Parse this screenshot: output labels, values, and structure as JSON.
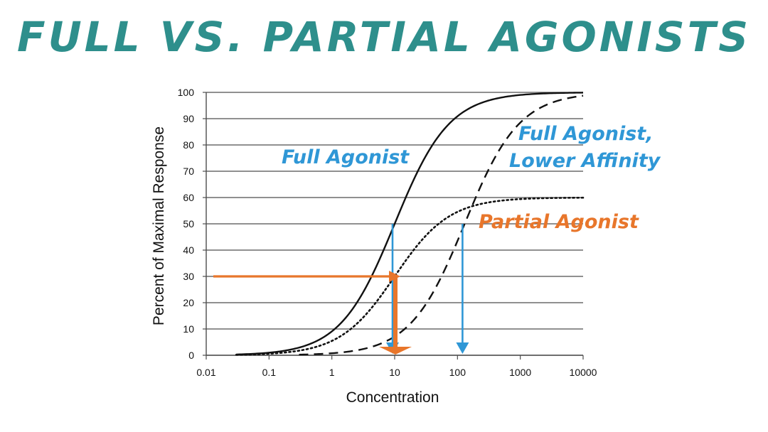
{
  "title": "FULL VS. PARTIAL AGONISTS",
  "colors": {
    "title": "#2e8f8c",
    "blue": "#2f97d6",
    "orange": "#e8762b",
    "curve": "#111111",
    "grid": "#4d4d4d"
  },
  "chart_data": {
    "type": "line",
    "xscale": "log",
    "xlim": [
      0.01,
      10000
    ],
    "ylim": [
      0,
      100
    ],
    "xticks": [
      "0.01",
      "0.1",
      "1",
      "10",
      "100",
      "1000",
      "10000"
    ],
    "yticks": [
      "0",
      "10",
      "20",
      "30",
      "40",
      "50",
      "60",
      "70",
      "80",
      "90",
      "100"
    ],
    "xlabel": "Concentration",
    "ylabel": "Percent of Maximal Response",
    "grid": "horizontal",
    "series": [
      {
        "name": "Full Agonist",
        "style": "solid",
        "emax": 100,
        "ec50": 10,
        "x_start": 0.03
      },
      {
        "name": "Partial Agonist",
        "style": "dotted",
        "emax": 60,
        "ec50": 10,
        "x_start": 0.03
      },
      {
        "name": "Full Agonist, Lower Affinity",
        "style": "dashed",
        "emax": 100,
        "ec50": 130,
        "x_start": 0.3
      }
    ],
    "annotations": [
      {
        "text": "Full Agonist",
        "color": "blue"
      },
      {
        "text": "Full Agonist,",
        "color": "blue"
      },
      {
        "text": "Lower Affinity",
        "color": "blue"
      },
      {
        "text": "Partial Agonist",
        "color": "orange"
      }
    ],
    "markers": [
      {
        "type": "drop-arrow",
        "color": "blue",
        "x": 10,
        "y": 50
      },
      {
        "type": "drop-arrow",
        "color": "blue",
        "x": 130,
        "y": 50
      },
      {
        "type": "horizontal-arrow",
        "color": "orange",
        "x_from": 0.01,
        "x": 10,
        "y": 30
      },
      {
        "type": "drop-arrow",
        "color": "orange",
        "x": 10,
        "y": 30
      }
    ]
  }
}
